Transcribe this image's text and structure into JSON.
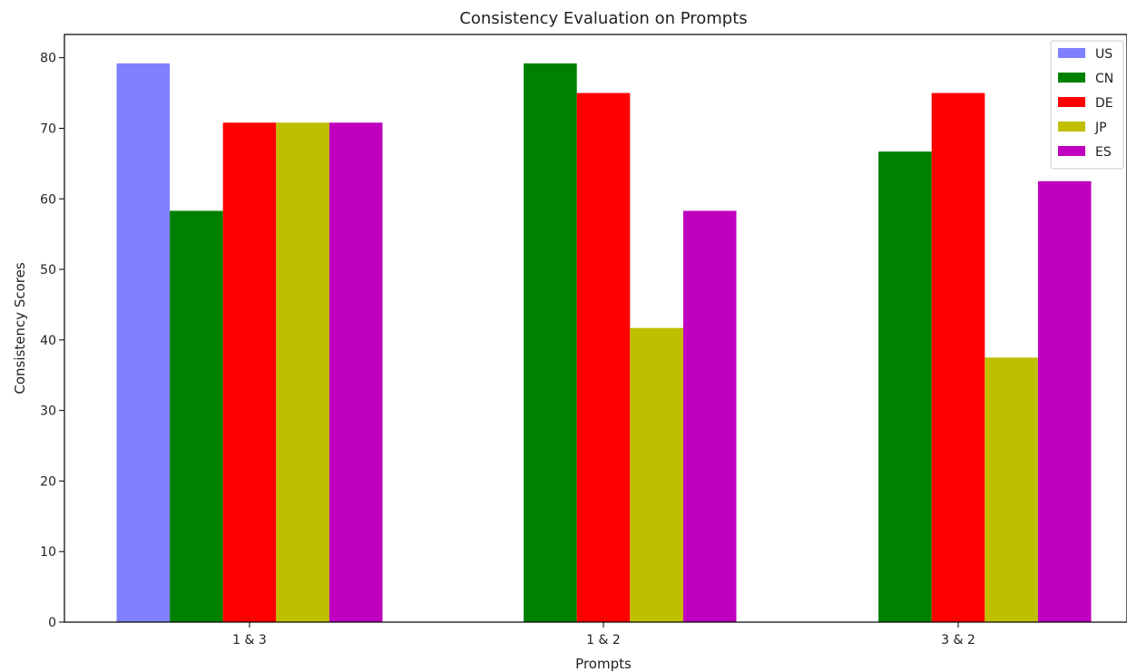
{
  "chart_data": {
    "type": "bar",
    "title": "Consistency Evaluation on Prompts",
    "xlabel": "Prompts",
    "ylabel": "Consistency Scores",
    "categories": [
      "1 & 3",
      "1 & 2",
      "3 & 2"
    ],
    "ylim": [
      0,
      83.3
    ],
    "yticks": [
      0,
      10,
      20,
      30,
      40,
      50,
      60,
      70,
      80
    ],
    "grid": false,
    "legend_position": "top-right",
    "series": [
      {
        "name": "US",
        "color": "#8080ff",
        "values": [
          79.2,
          0,
          0
        ]
      },
      {
        "name": "CN",
        "color": "#008000",
        "values": [
          58.3,
          79.2,
          66.7
        ]
      },
      {
        "name": "DE",
        "color": "#ff0000",
        "values": [
          70.8,
          75.0,
          75.0
        ]
      },
      {
        "name": "JP",
        "color": "#bfbf00",
        "values": [
          70.8,
          41.7,
          37.5
        ]
      },
      {
        "name": "ES",
        "color": "#bf00bf",
        "values": [
          70.8,
          58.3,
          62.5
        ]
      }
    ]
  }
}
